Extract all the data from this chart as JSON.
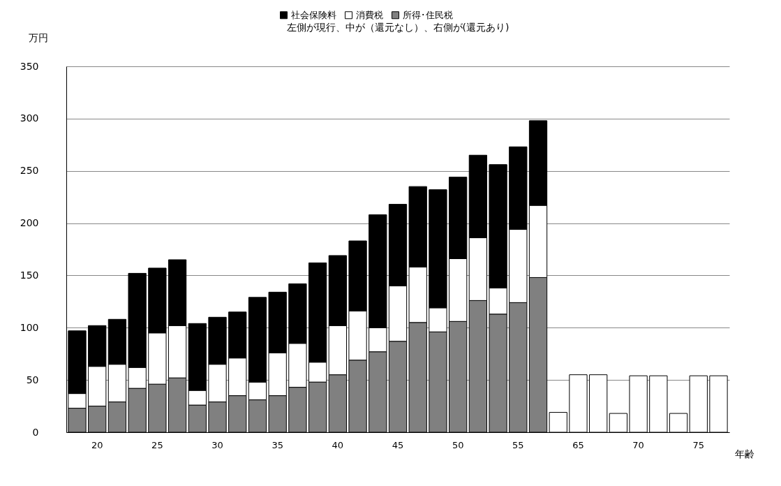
{
  "chart_data": {
    "type": "bar",
    "stacked": true,
    "title": "左側が現行、中が（還元なし）、右側が(還元あり)",
    "xlabel": "年齢",
    "ylabel": "万円",
    "categories": [
      null,
      "20",
      null,
      null,
      "25",
      null,
      null,
      "30",
      null,
      null,
      "35",
      null,
      null,
      "40",
      null,
      null,
      "45",
      null,
      null,
      "50",
      null,
      null,
      "55",
      null,
      null,
      "65",
      null,
      null,
      "70",
      null,
      null,
      "75",
      null
    ],
    "series": [
      {
        "name": "所得･住民税",
        "color": "#808080",
        "values": [
          23,
          25,
          29,
          42,
          46,
          52,
          26,
          29,
          35,
          31,
          35,
          43,
          48,
          55,
          69,
          77,
          87,
          105,
          96,
          106,
          126,
          113,
          124,
          148,
          null,
          null,
          null,
          null,
          null,
          null,
          null,
          null,
          null
        ]
      },
      {
        "name": "消費税",
        "color": "#ffffff",
        "values": [
          14,
          38,
          36,
          20,
          49,
          50,
          14,
          36,
          36,
          17,
          41,
          42,
          19,
          47,
          47,
          23,
          53,
          53,
          23,
          60,
          60,
          25,
          70,
          69,
          19,
          55,
          55,
          18,
          54,
          54,
          18,
          54,
          54
        ]
      },
      {
        "name": "社会保険料",
        "color": "#000000",
        "values": [
          60,
          39,
          43,
          90,
          62,
          63,
          64,
          45,
          44,
          81,
          58,
          57,
          95,
          67,
          67,
          108,
          78,
          77,
          113,
          78,
          79,
          118,
          79,
          81,
          null,
          null,
          null,
          null,
          null,
          null,
          null,
          null,
          null
        ]
      }
    ],
    "ylim": [
      0,
      350
    ],
    "yticks": [
      0,
      50,
      100,
      150,
      200,
      250,
      300,
      350
    ],
    "grid": "y",
    "legend": "top"
  }
}
